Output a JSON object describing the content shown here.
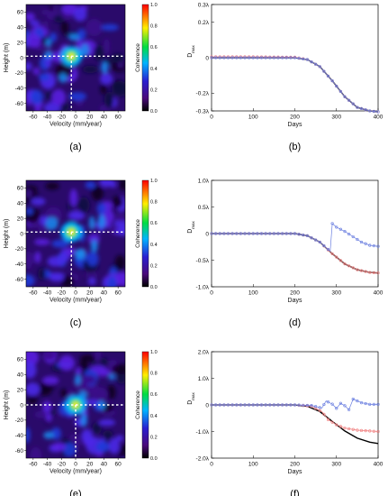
{
  "chart_data": [
    {
      "panel": "(a)",
      "type": "heatmap",
      "xlabel": "Velocity (mm/year)",
      "ylabel": "Height (m)",
      "xlim": [
        -70,
        70
      ],
      "ylim": [
        -70,
        70
      ],
      "xticks": [
        "-60",
        "-40",
        "-20",
        "0",
        "20",
        "40",
        "60"
      ],
      "yticks": [
        "60",
        "40",
        "20",
        "0",
        "-20",
        "-40",
        "-60"
      ],
      "peak": {
        "x": -6,
        "y": 2
      }
    },
    {
      "panel": "(b)",
      "type": "line",
      "xlabel": "Days",
      "ylabel": "D",
      "ylabel_sub": "max",
      "xlim": [
        0,
        400
      ],
      "ylim": [
        -0.3,
        0.3
      ],
      "xticks": [
        "0",
        "100",
        "200",
        "300",
        "400"
      ],
      "yticks": [
        "0.3λ",
        "0.2λ",
        "0",
        "-0.2λ",
        "-0.3λ"
      ],
      "true": [
        [
          0,
          0
        ],
        [
          200,
          0
        ],
        [
          230,
          -0.01
        ],
        [
          260,
          -0.05
        ],
        [
          290,
          -0.13
        ],
        [
          320,
          -0.22
        ],
        [
          350,
          -0.28
        ],
        [
          380,
          -0.3
        ],
        [
          400,
          -0.305
        ]
      ],
      "blue": [
        [
          0,
          0
        ],
        [
          200,
          0
        ],
        [
          230,
          -0.01
        ],
        [
          260,
          -0.05
        ],
        [
          290,
          -0.13
        ],
        [
          320,
          -0.22
        ],
        [
          350,
          -0.28
        ],
        [
          380,
          -0.3
        ],
        [
          400,
          -0.305
        ]
      ],
      "red": [
        [
          0,
          0.005
        ],
        [
          100,
          0.005
        ],
        [
          200,
          0.003
        ],
        [
          230,
          -0.01
        ],
        [
          260,
          -0.05
        ],
        [
          290,
          -0.13
        ],
        [
          320,
          -0.22
        ],
        [
          350,
          -0.28
        ],
        [
          380,
          -0.3
        ],
        [
          400,
          -0.305
        ]
      ]
    },
    {
      "panel": "(c)",
      "type": "heatmap",
      "xlabel": "Velocity (mm/year)",
      "ylabel": "Height (m)",
      "xlim": [
        -70,
        70
      ],
      "ylim": [
        -70,
        70
      ],
      "xticks": [
        "-60",
        "-40",
        "-20",
        "0",
        "20",
        "40",
        "60"
      ],
      "yticks": [
        "60",
        "40",
        "20",
        "0",
        "-20",
        "-40",
        "-60"
      ],
      "peak": {
        "x": -6,
        "y": 2
      }
    },
    {
      "panel": "(d)",
      "type": "line",
      "xlabel": "Days",
      "ylabel": "D",
      "ylabel_sub": "max",
      "xlim": [
        0,
        400
      ],
      "ylim": [
        -1.0,
        1.0
      ],
      "xticks": [
        "0",
        "100",
        "200",
        "300",
        "400"
      ],
      "yticks": [
        "1.0λ",
        "0.5λ",
        "0",
        "-0.5λ",
        "-1.0λ"
      ],
      "true": [
        [
          0,
          0
        ],
        [
          200,
          0
        ],
        [
          230,
          -0.04
        ],
        [
          260,
          -0.16
        ],
        [
          290,
          -0.38
        ],
        [
          320,
          -0.57
        ],
        [
          350,
          -0.68
        ],
        [
          380,
          -0.73
        ],
        [
          400,
          -0.74
        ]
      ],
      "blue": [
        [
          0,
          0
        ],
        [
          200,
          0
        ],
        [
          230,
          -0.04
        ],
        [
          260,
          -0.16
        ],
        [
          285,
          -0.33
        ],
        [
          290,
          0.19
        ],
        [
          300,
          0.12
        ],
        [
          320,
          0.04
        ],
        [
          340,
          -0.06
        ],
        [
          360,
          -0.16
        ],
        [
          380,
          -0.22
        ],
        [
          400,
          -0.24
        ]
      ],
      "red": [
        [
          0,
          0
        ],
        [
          200,
          0
        ],
        [
          230,
          -0.04
        ],
        [
          260,
          -0.16
        ],
        [
          290,
          -0.38
        ],
        [
          320,
          -0.57
        ],
        [
          350,
          -0.68
        ],
        [
          380,
          -0.73
        ],
        [
          400,
          -0.74
        ]
      ]
    },
    {
      "panel": "(e)",
      "type": "heatmap",
      "xlabel": "Velocity (mm/year)",
      "ylabel": "Height (m)",
      "xlim": [
        -70,
        70
      ],
      "ylim": [
        -70,
        70
      ],
      "xticks": [
        "-60",
        "-40",
        "-20",
        "0",
        "20",
        "40",
        "60"
      ],
      "yticks": [
        "60",
        "40",
        "20",
        "0",
        "-20",
        "-40",
        "-60"
      ],
      "peak": {
        "x": 0,
        "y": 0
      }
    },
    {
      "panel": "(f)",
      "type": "line",
      "xlabel": "Days",
      "ylabel": "D",
      "ylabel_sub": "max",
      "xlim": [
        0,
        400
      ],
      "ylim": [
        -2.0,
        2.0
      ],
      "xticks": [
        "0",
        "100",
        "200",
        "300",
        "400"
      ],
      "yticks": [
        "2.0λ",
        "1.0λ",
        "0",
        "-1.0λ",
        "-2.0λ"
      ],
      "true": [
        [
          0,
          0
        ],
        [
          200,
          0
        ],
        [
          230,
          -0.05
        ],
        [
          260,
          -0.25
        ],
        [
          290,
          -0.62
        ],
        [
          320,
          -0.98
        ],
        [
          350,
          -1.25
        ],
        [
          380,
          -1.4
        ],
        [
          400,
          -1.45
        ]
      ],
      "blue": [
        [
          0,
          0
        ],
        [
          200,
          0
        ],
        [
          240,
          -0.02
        ],
        [
          265,
          -0.12
        ],
        [
          275,
          0.15
        ],
        [
          290,
          0.03
        ],
        [
          300,
          -0.13
        ],
        [
          310,
          0.06
        ],
        [
          320,
          -0.03
        ],
        [
          330,
          -0.18
        ],
        [
          340,
          0.22
        ],
        [
          360,
          0.08
        ],
        [
          380,
          0.02
        ],
        [
          400,
          0.02
        ]
      ],
      "red": [
        [
          0,
          0
        ],
        [
          200,
          0
        ],
        [
          240,
          -0.05
        ],
        [
          265,
          -0.25
        ],
        [
          280,
          -0.55
        ],
        [
          300,
          -0.75
        ],
        [
          320,
          -0.87
        ],
        [
          350,
          -0.95
        ],
        [
          380,
          -0.98
        ],
        [
          400,
          -1.0
        ]
      ]
    }
  ],
  "colorbar": {
    "label": "Coherence",
    "ticks": [
      "1.0",
      "0.8",
      "0.6",
      "0.4",
      "0.2",
      "0.0"
    ]
  },
  "colors": {
    "true_line": "#000000",
    "blue_series": "#6b7fe0",
    "red_series": "#f08080",
    "guide": "#ffffff"
  }
}
